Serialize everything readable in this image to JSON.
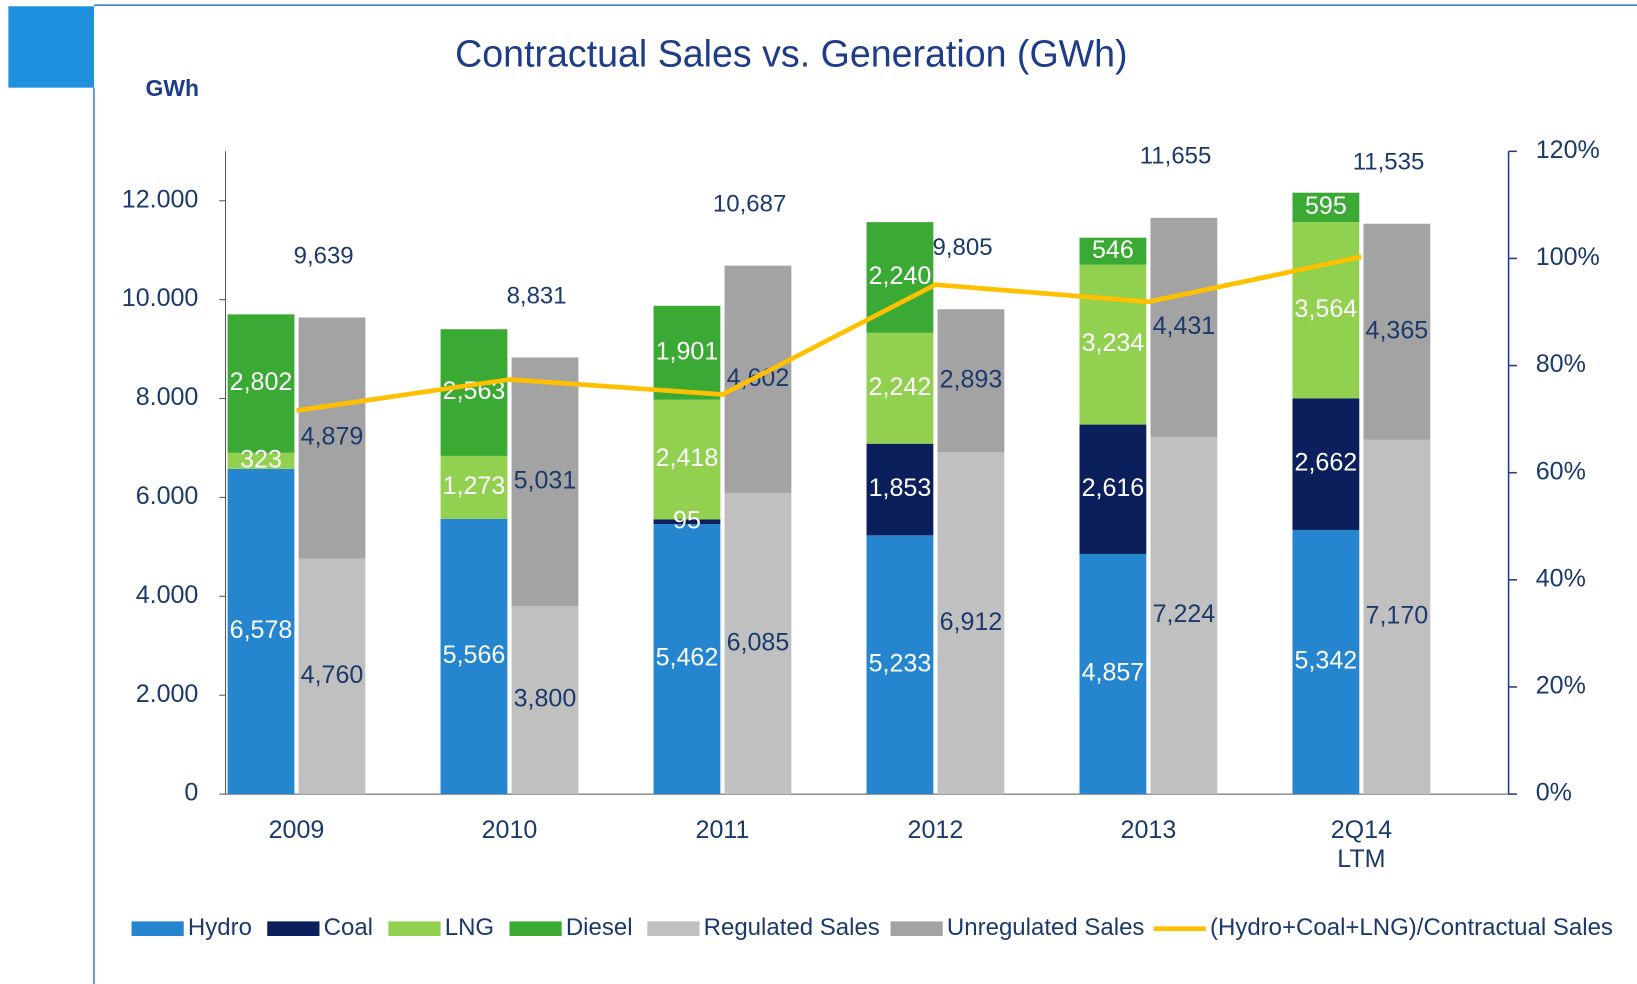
{
  "chart_data": {
    "type": "stacked-bar-line",
    "title": "Contractual Sales vs. Generation (GWh)",
    "y_label": "GWh",
    "categories": [
      "2009",
      "2010",
      "2011",
      "2012",
      "2013",
      "2Q14 LTM"
    ],
    "ylim": [
      0,
      13000
    ],
    "yticks": [
      0,
      {
        "value": 2000,
        "label": "2.000"
      },
      {
        "value": 4000,
        "label": "4.000"
      },
      {
        "value": 6000,
        "label": "6.000"
      },
      {
        "value": 8000,
        "label": "8.000"
      },
      {
        "value": 10000,
        "label": "10.000"
      },
      {
        "value": 12000,
        "label": "12.000"
      }
    ],
    "y2lim": [
      0,
      120
    ],
    "y2ticks": [
      {
        "value": 0,
        "label": "0%"
      },
      {
        "value": 20,
        "label": "20%"
      },
      {
        "value": 40,
        "label": "40%"
      },
      {
        "value": 60,
        "label": "60%"
      },
      {
        "value": 80,
        "label": "80%"
      },
      {
        "value": 100,
        "label": "100%"
      },
      {
        "value": 120,
        "label": "120%"
      }
    ],
    "series": [
      {
        "name": "Hydro",
        "stack": "generation",
        "color": "#2585cf",
        "label_color": "#ffffff",
        "values": [
          6578,
          5566,
          5462,
          5233,
          4857,
          5342
        ],
        "value_labels": [
          "6,578",
          "5,566",
          "5,462",
          "5,233",
          "4,857",
          "5,342"
        ]
      },
      {
        "name": "Coal",
        "stack": "generation",
        "color": "#0b1f5c",
        "label_color": "#ffffff",
        "values": [
          null,
          null,
          95,
          1853,
          2616,
          2662
        ],
        "value_labels": [
          null,
          null,
          "95",
          "1,853",
          "2,616",
          "2,662"
        ]
      },
      {
        "name": "LNG",
        "stack": "generation",
        "color": "#92d050",
        "label_color": "#ffffff",
        "values": [
          323,
          1273,
          2418,
          2242,
          3234,
          3564
        ],
        "value_labels": [
          "323",
          "1,273",
          "2,418",
          "2,242",
          "3,234",
          "3,564"
        ]
      },
      {
        "name": "Diesel",
        "stack": "generation",
        "color": "#3aaa35",
        "label_color": "#ffffff",
        "values": [
          2802,
          2563,
          1901,
          2240,
          546,
          595
        ],
        "value_labels": [
          "2,802",
          "2,563",
          "1,901",
          "2,240",
          "546",
          "595"
        ]
      },
      {
        "name": "Regulated Sales",
        "stack": "sales",
        "color": "#c0c0c0",
        "label_color": "#1b3a6b",
        "values": [
          4760,
          3800,
          6085,
          6912,
          7224,
          7170
        ],
        "value_labels": [
          "4,760",
          "3,800",
          "6,085",
          "6,912",
          "7,224",
          "7,170"
        ]
      },
      {
        "name": "Unregulated Sales",
        "stack": "sales",
        "color": "#a3a3a3",
        "label_color": "#1b3a6b",
        "values": [
          4879,
          5031,
          4602,
          2893,
          4431,
          4365
        ],
        "value_labels": [
          "4,879",
          "5,031",
          "4,602",
          "2,893",
          "4,431",
          "4,365"
        ]
      },
      {
        "name": "(Hydro+Coal+LNG)/Contractual Sales",
        "type": "line",
        "axis": "y2",
        "color": "#ffc000",
        "values": [
          71.6,
          77.4,
          74.6,
          95.1,
          91.9,
          100.3
        ]
      }
    ],
    "totals": {
      "values": [
        9639,
        8831,
        10687,
        9805,
        11655,
        11535
      ],
      "value_labels": [
        "9,639",
        "8,831",
        "10,687",
        "9,805",
        "11,655",
        "11,535"
      ]
    }
  }
}
